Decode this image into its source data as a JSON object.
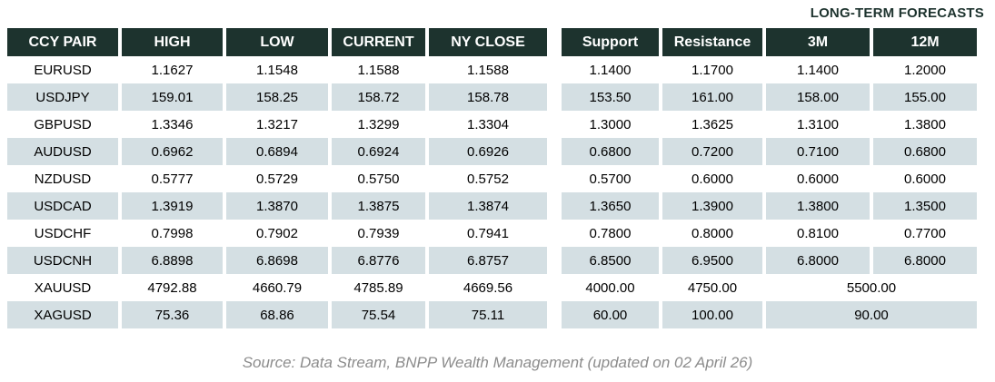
{
  "forecast_label": "LONG-TERM FORECASTS",
  "table": {
    "columns": [
      "CCY PAIR",
      "HIGH",
      "LOW",
      "CURRENT",
      "NY CLOSE",
      "Support",
      "Resistance",
      "3M",
      "12M"
    ],
    "rows": [
      {
        "pair": "EURUSD",
        "high": "1.1627",
        "low": "1.1548",
        "current": "1.1588",
        "ny_close": "1.1588",
        "support": "1.1400",
        "resistance": "1.1700",
        "m3": "1.1400",
        "m12": "1.2000"
      },
      {
        "pair": "USDJPY",
        "high": "159.01",
        "low": "158.25",
        "current": "158.72",
        "ny_close": "158.78",
        "support": "153.50",
        "resistance": "161.00",
        "m3": "158.00",
        "m12": "155.00"
      },
      {
        "pair": "GBPUSD",
        "high": "1.3346",
        "low": "1.3217",
        "current": "1.3299",
        "ny_close": "1.3304",
        "support": "1.3000",
        "resistance": "1.3625",
        "m3": "1.3100",
        "m12": "1.3800"
      },
      {
        "pair": "AUDUSD",
        "high": "0.6962",
        "low": "0.6894",
        "current": "0.6924",
        "ny_close": "0.6926",
        "support": "0.6800",
        "resistance": "0.7200",
        "m3": "0.7100",
        "m12": "0.6800"
      },
      {
        "pair": "NZDUSD",
        "high": "0.5777",
        "low": "0.5729",
        "current": "0.5750",
        "ny_close": "0.5752",
        "support": "0.5700",
        "resistance": "0.6000",
        "m3": "0.6000",
        "m12": "0.6000"
      },
      {
        "pair": "USDCAD",
        "high": "1.3919",
        "low": "1.3870",
        "current": "1.3875",
        "ny_close": "1.3874",
        "support": "1.3650",
        "resistance": "1.3900",
        "m3": "1.3800",
        "m12": "1.3500"
      },
      {
        "pair": "USDCHF",
        "high": "0.7998",
        "low": "0.7902",
        "current": "0.7939",
        "ny_close": "0.7941",
        "support": "0.7800",
        "resistance": "0.8000",
        "m3": "0.8100",
        "m12": "0.7700"
      },
      {
        "pair": "USDCNH",
        "high": "6.8898",
        "low": "6.8698",
        "current": "6.8776",
        "ny_close": "6.8757",
        "support": "6.8500",
        "resistance": "6.9500",
        "m3": "6.8000",
        "m12": "6.8000"
      },
      {
        "pair": "XAUUSD",
        "high": "4792.88",
        "low": "4660.79",
        "current": "4785.89",
        "ny_close": "4669.56",
        "support": "4000.00",
        "resistance": "4750.00",
        "forecast_merged": "5500.00"
      },
      {
        "pair": "XAGUSD",
        "high": "75.36",
        "low": "68.86",
        "current": "75.54",
        "ny_close": "75.11",
        "support": "60.00",
        "resistance": "100.00",
        "forecast_merged": "90.00"
      }
    ]
  },
  "source": "Source: Data Stream, BNPP Wealth Management (updated on 02 April 26)",
  "colors": {
    "header_bg": "#1d332e",
    "row_alt_bg": "#d4dfe3",
    "forecast_text": "#1d332e",
    "source_text": "#8c8c8c"
  }
}
